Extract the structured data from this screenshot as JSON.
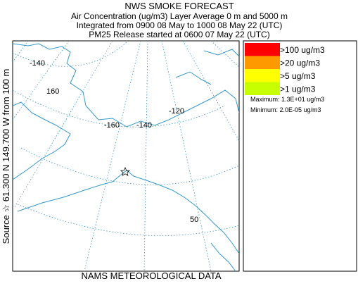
{
  "header": {
    "title": "NWS SMOKE FORECAST",
    "lines": [
      "Air Concentration (ug/m3) Layer Average    0 m and  5000 m",
      "Integrated from 0900 08 May to 1000 08 May 22 (UTC)",
      "PM25 Release started at 0600 07 May 22 (UTC)"
    ]
  },
  "side_label": "Source ☆ 61.300 N 149.700 W     from  100 m",
  "footer": "NAMS METEOROLOGICAL DATA",
  "map": {
    "graticule_labels": [
      "-140",
      "160",
      "-160",
      "-140",
      "-120",
      "50"
    ]
  },
  "legend": {
    "items": [
      {
        "label": ">100 ug/m3",
        "color": "#ff0000"
      },
      {
        "label": ">20 ug/m3",
        "color": "#ff9900"
      },
      {
        "label": ">5 ug/m3",
        "color": "#ffff00"
      },
      {
        "label": ">1 ug/m3",
        "color": "#c8ff00"
      }
    ],
    "maximum": "Maximum: 1.3E+01 ug/m3",
    "minimum": "Minimum: 2.0E-05 ug/m3"
  }
}
